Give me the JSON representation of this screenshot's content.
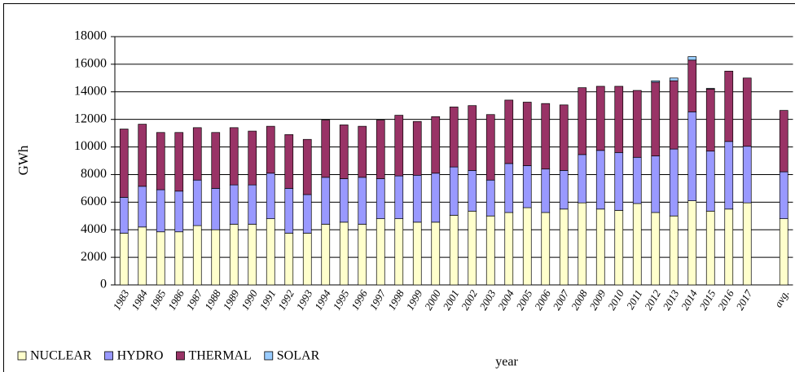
{
  "chart_data": {
    "type": "stacked_bar",
    "x_label": "year",
    "y_label": "GWh",
    "categories": [
      "1983",
      "1984",
      "1985",
      "1986",
      "1987",
      "1988",
      "1989",
      "1990",
      "1991",
      "1992",
      "1993",
      "1994",
      "1995",
      "1996",
      "1997",
      "1998",
      "1999",
      "2000",
      "2001",
      "2002",
      "2003",
      "2004",
      "2005",
      "2006",
      "2007",
      "2008",
      "2009",
      "2010",
      "2011",
      "2012",
      "2013",
      "2014",
      "2015",
      "2016",
      "2017",
      null,
      "avg."
    ],
    "series": [
      {
        "name": "NUCLEAR",
        "color": "#ffffcc",
        "values": [
          3750,
          4200,
          3850,
          3850,
          4300,
          4000,
          4400,
          4400,
          4800,
          3750,
          3750,
          4400,
          4550,
          4400,
          4800,
          4800,
          4550,
          4550,
          5050,
          5350,
          5000,
          5250,
          5600,
          5250,
          5500,
          5950,
          5500,
          5400,
          5900,
          5250,
          5000,
          6100,
          5350,
          5500,
          5950,
          null,
          4800
        ]
      },
      {
        "name": "HYDRO",
        "color": "#9999ff",
        "values": [
          2600,
          2950,
          3050,
          2950,
          3300,
          3000,
          2850,
          2850,
          3300,
          3250,
          2800,
          3400,
          3150,
          3400,
          2900,
          3100,
          3400,
          3550,
          3500,
          2950,
          2600,
          3550,
          3050,
          3150,
          2800,
          3500,
          4250,
          4200,
          3350,
          4100,
          4850,
          6450,
          4350,
          4900,
          4100,
          null,
          3400
        ]
      },
      {
        "name": "THERMAL",
        "color": "#993366",
        "values": [
          4950,
          4500,
          4150,
          4250,
          3800,
          4050,
          4150,
          3900,
          3400,
          3900,
          4000,
          4150,
          3900,
          3700,
          4250,
          4400,
          3900,
          4100,
          4350,
          4700,
          4750,
          4600,
          4600,
          4750,
          4750,
          4850,
          4650,
          4800,
          4850,
          5350,
          4950,
          3750,
          4500,
          5100,
          4950,
          null,
          4450
        ]
      },
      {
        "name": "SOLAR",
        "color": "#99ccff",
        "values": [
          0,
          0,
          0,
          0,
          0,
          0,
          0,
          0,
          0,
          0,
          0,
          0,
          0,
          0,
          0,
          0,
          0,
          0,
          0,
          0,
          0,
          0,
          0,
          0,
          0,
          0,
          0,
          0,
          0,
          100,
          200,
          250,
          50,
          0,
          0,
          null,
          0
        ]
      }
    ],
    "ylim": [
      0,
      18000
    ],
    "yticks": [
      0,
      2000,
      4000,
      6000,
      8000,
      10000,
      12000,
      14000,
      16000,
      18000
    ],
    "grid": true,
    "legend": "bottom-left"
  }
}
